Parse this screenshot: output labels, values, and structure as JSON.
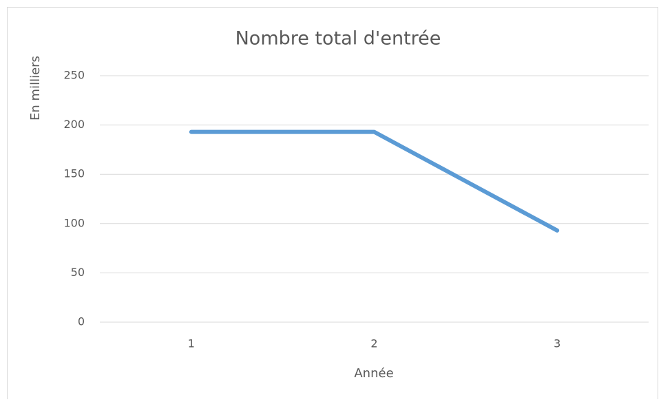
{
  "chart_data": {
    "type": "line",
    "title": "Nombre total d'entrée",
    "x_label": "Année",
    "y_label": "En milliers",
    "categories": [
      "1",
      "2",
      "3"
    ],
    "series": [
      {
        "name": "Nombre total d'entrée",
        "color": "#5b9bd5",
        "values": [
          193,
          193,
          93
        ]
      }
    ],
    "ylim": [
      0,
      250
    ],
    "yticks": [
      0,
      50,
      100,
      150,
      200,
      250
    ],
    "grid": true
  }
}
